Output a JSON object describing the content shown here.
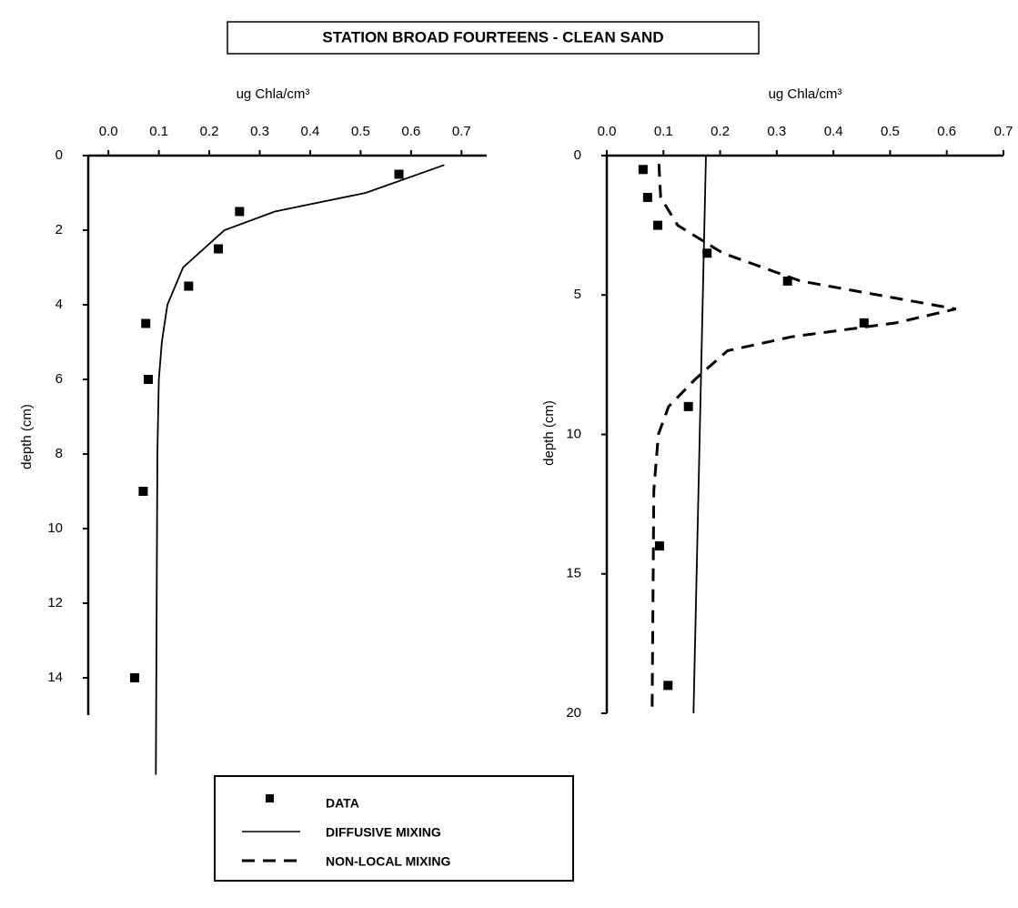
{
  "title": "STATION BROAD FOURTEENS - CLEAN SAND",
  "chart_data": [
    {
      "type": "profile",
      "xlabel": "ug Chla/cm³",
      "ylabel": "depth (cm)",
      "xlim": [
        -0.04,
        0.75
      ],
      "xticks": [
        {
          "value": 0,
          "label": "0.0"
        },
        0.1,
        0.2,
        0.3,
        0.4,
        0.5,
        0.6,
        0.7
      ],
      "ylim": [
        0,
        15
      ],
      "yticks": [
        0,
        2,
        4,
        6,
        8,
        10,
        12,
        14
      ],
      "y_inverted": true,
      "series": [
        {
          "style": "square",
          "color": "#000000",
          "x": [
            0.576,
            0.26,
            0.218,
            0.159,
            0.074,
            0.079,
            0.069,
            0.052
          ],
          "values": [
            0.5,
            1.5,
            2.5,
            3.5,
            4.5,
            6,
            9,
            14
          ]
        },
        {
          "style": "solid",
          "color": "#000000",
          "x": [
            0.666,
            0.51,
            0.33,
            0.23,
            0.148,
            0.117,
            0.106,
            0.1,
            0.097,
            0.094
          ],
          "values": [
            0.25,
            1,
            1.5,
            2,
            3,
            4,
            5,
            6,
            8,
            16.6
          ]
        }
      ]
    },
    {
      "type": "profile",
      "xlabel": "ug Chla/cm³",
      "ylabel": "depth (cm)",
      "xlim": [
        0,
        0.7
      ],
      "xticks": [
        {
          "value": 0,
          "label": "0.0"
        },
        0.1,
        0.2,
        0.3,
        0.4,
        0.5,
        0.6,
        0.7
      ],
      "ylim": [
        0,
        20
      ],
      "yticks": [
        0,
        5,
        10,
        15,
        20
      ],
      "y_inverted": true,
      "series": [
        {
          "name": "DATA",
          "style": "square",
          "color": "#000000",
          "x": [
            0.064,
            0.072,
            0.09,
            0.177,
            0.319,
            0.454,
            0.144,
            0.093,
            0.108
          ],
          "values": [
            0.5,
            1.5,
            2.5,
            3.5,
            4.5,
            6,
            9,
            14,
            19
          ]
        },
        {
          "name": "DIFFUSIVE MIXING",
          "style": "solid",
          "color": "#000000",
          "x": [
            0.175,
            0.153
          ],
          "values": [
            0,
            20
          ]
        },
        {
          "name": "NON-LOCAL MIXING",
          "style": "dashed",
          "color": "#000000",
          "x": [
            0.092,
            0.095,
            0.125,
            0.205,
            0.342,
            0.616,
            0.51,
            0.326,
            0.213,
            0.157,
            0.109,
            0.091,
            0.083,
            0.08
          ],
          "values": [
            0.3,
            1.5,
            2.5,
            3.5,
            4.5,
            5.5,
            6,
            6.5,
            7,
            8,
            9,
            10,
            12,
            20
          ]
        }
      ]
    }
  ]
}
